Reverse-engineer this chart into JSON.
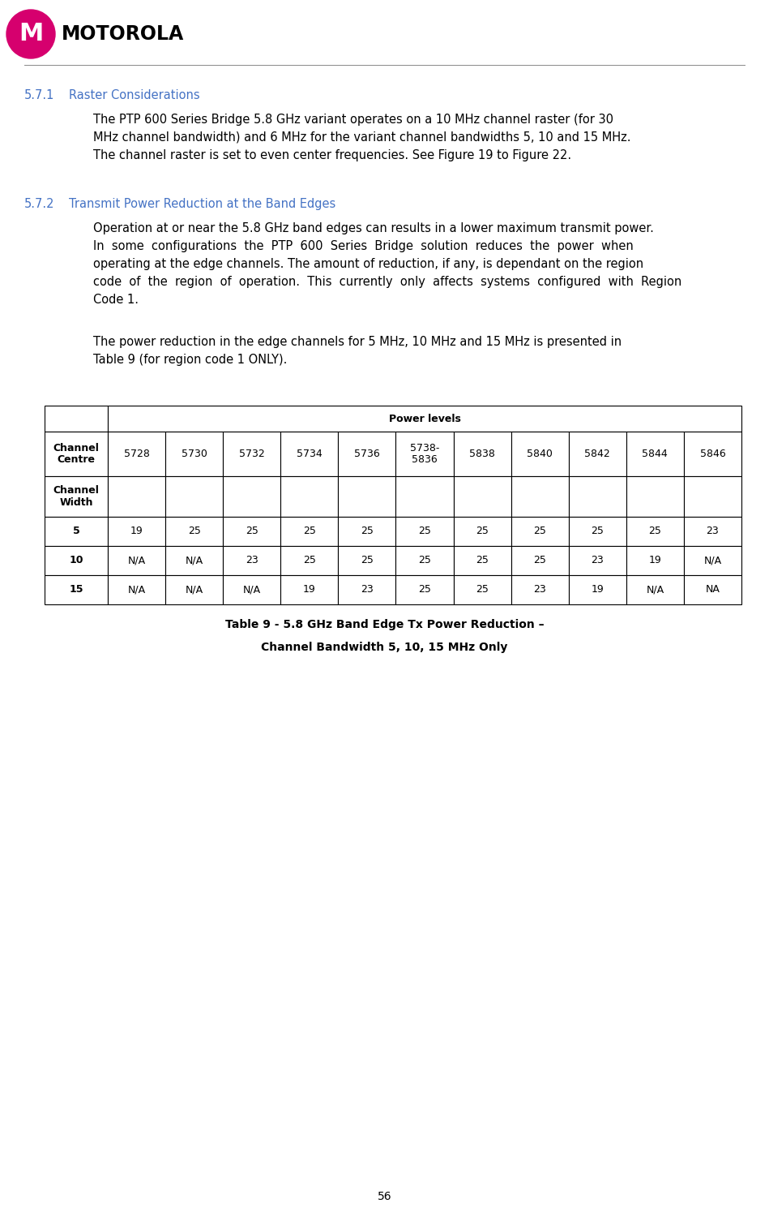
{
  "page_number": "56",
  "logo_text": "MOTOROLA",
  "section_571_num": "5.7.1",
  "section_571_title": "Raster Considerations",
  "section_571_body": [
    "The PTP 600 Series Bridge 5.8 GHz variant operates on a 10 MHz channel raster (for 30",
    "MHz channel bandwidth) and 6 MHz for the variant channel bandwidths 5, 10 and 15 MHz.",
    "The channel raster is set to even center frequencies. See Figure 19 to Figure 22."
  ],
  "section_572_num": "5.7.2",
  "section_572_title": "Transmit Power Reduction at the Band Edges",
  "section_572_body": [
    "Operation at or near the 5.8 GHz band edges can results in a lower maximum transmit power.",
    "In  some  configurations  the  PTP  600  Series  Bridge  solution  reduces  the  power  when",
    "operating at the edge channels. The amount of reduction, if any, is dependant on the region",
    "code  of  the  region  of  operation.  This  currently  only  affects  systems  configured  with  Region",
    "Code 1."
  ],
  "section_572_body2": [
    "The power reduction in the edge channels for 5 MHz, 10 MHz and 15 MHz is presented in",
    "Table 9 (for region code 1 ONLY)."
  ],
  "table_caption_line1": "Table 9 - 5.8 GHz Band Edge Tx Power Reduction –",
  "table_caption_line2": "Channel Bandwidth 5, 10, 15 MHz Only",
  "table_header_merged": "Power levels",
  "table_channels": [
    "5728",
    "5730",
    "5732",
    "5734",
    "5736",
    "5738-\n5836",
    "5838",
    "5840",
    "5842",
    "5844",
    "5846"
  ],
  "table_row5": [
    "5",
    "19",
    "25",
    "25",
    "25",
    "25",
    "25",
    "25",
    "25",
    "25",
    "25",
    "23"
  ],
  "table_row10": [
    "10",
    "N/A",
    "N/A",
    "23",
    "25",
    "25",
    "25",
    "25",
    "25",
    "23",
    "19",
    "N/A"
  ],
  "table_row15": [
    "15",
    "N/A",
    "N/A",
    "N/A",
    "19",
    "23",
    "25",
    "25",
    "23",
    "19",
    "N/A",
    "NA"
  ],
  "section_color": "#4472c4",
  "body_color": "#000000",
  "background_color": "#ffffff",
  "table_border_color": "#000000"
}
